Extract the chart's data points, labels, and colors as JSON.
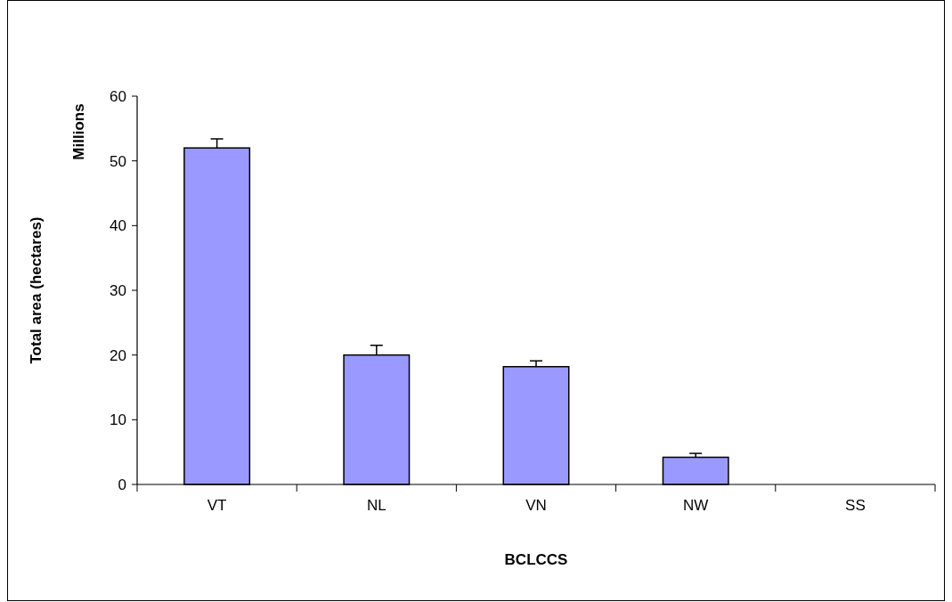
{
  "chart_data": {
    "type": "bar",
    "xlabel": "BCLCCS",
    "ylabel": "Total area (hectares)",
    "annotations": [
      "Millions"
    ],
    "categories": [
      "VT",
      "NL",
      "VN",
      "NW",
      "SS"
    ],
    "values": [
      52,
      20,
      18.2,
      4.2,
      0
    ],
    "errors": [
      1.4,
      1.5,
      0.9,
      0.6,
      null
    ],
    "color": "#9999ff",
    "ylim": [
      0,
      60
    ],
    "yticks": [
      0,
      10,
      20,
      30,
      40,
      50,
      60
    ]
  }
}
